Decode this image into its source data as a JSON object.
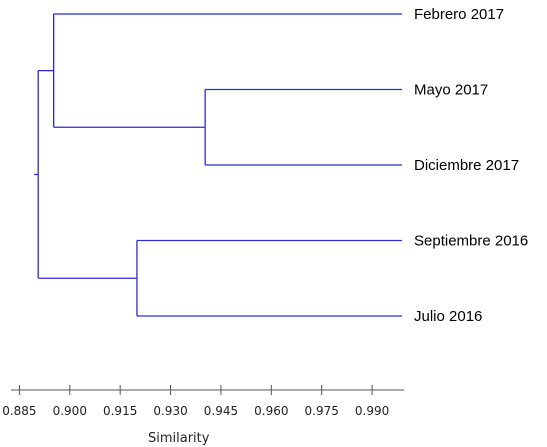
{
  "chart_data": {
    "type": "dendrogram",
    "orientation": "horizontal",
    "xlabel": "Similarity",
    "xlim": [
      0.8825,
      0.9995
    ],
    "xticks": [
      0.885,
      0.9,
      0.915,
      0.93,
      0.945,
      0.96,
      0.975,
      0.99
    ],
    "tick_labels": [
      "0.885",
      "0.900",
      "0.915",
      "0.930",
      "0.945",
      "0.960",
      "0.975",
      "0.990"
    ],
    "leaves": [
      "Febrero 2017",
      "Mayo 2017",
      "Diciembre 2017",
      "Septiembre 2016",
      "Julio 2016"
    ],
    "merges": [
      {
        "left": 1,
        "right": 2,
        "similarity": 0.9403
      },
      {
        "left": 3,
        "right": 4,
        "similarity": 0.92
      },
      {
        "left": 0,
        "right": "Mayo 2017 + Diciembre 2017",
        "similarity": 0.8952
      },
      {
        "left": "Febrero 2017 + Mayo 2017 + Diciembre 2017",
        "right": "Septiembre 2016 + Julio 2016",
        "similarity": 0.8906
      }
    ],
    "colors": {
      "branch": "#2b2bd6",
      "axis": "#555555"
    }
  }
}
